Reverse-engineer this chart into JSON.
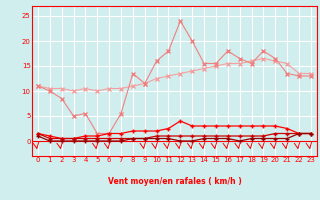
{
  "x": [
    0,
    1,
    2,
    3,
    4,
    5,
    6,
    7,
    8,
    9,
    10,
    11,
    12,
    13,
    14,
    15,
    16,
    17,
    18,
    19,
    20,
    21,
    22,
    23
  ],
  "line1": [
    11.0,
    10.5,
    10.5,
    10.0,
    10.5,
    10.0,
    10.5,
    10.5,
    11.0,
    11.5,
    12.5,
    13.0,
    13.5,
    14.0,
    14.5,
    15.0,
    15.5,
    15.5,
    16.0,
    16.5,
    16.0,
    15.5,
    13.5,
    13.5
  ],
  "line2": [
    11.0,
    10.0,
    8.5,
    5.0,
    5.5,
    1.5,
    1.5,
    5.5,
    13.5,
    11.5,
    16.0,
    18.0,
    24.0,
    20.0,
    15.5,
    15.5,
    18.0,
    16.5,
    15.5,
    18.0,
    16.5,
    13.5,
    13.0,
    13.0
  ],
  "line3": [
    1.5,
    1.0,
    0.5,
    0.5,
    1.0,
    1.0,
    1.5,
    1.5,
    2.0,
    2.0,
    2.0,
    2.5,
    4.0,
    3.0,
    3.0,
    3.0,
    3.0,
    3.0,
    3.0,
    3.0,
    3.0,
    2.5,
    1.5,
    1.5
  ],
  "line4": [
    1.5,
    0.5,
    0.5,
    0.5,
    0.5,
    0.5,
    0.5,
    0.5,
    0.5,
    0.5,
    1.0,
    1.0,
    1.0,
    1.0,
    1.0,
    1.0,
    1.0,
    1.0,
    1.0,
    1.0,
    1.5,
    1.5,
    1.5,
    1.5
  ],
  "line5": [
    1.0,
    0.0,
    0.0,
    0.0,
    0.0,
    0.0,
    0.0,
    0.0,
    0.5,
    0.5,
    0.5,
    0.5,
    0.0,
    0.0,
    0.5,
    0.5,
    0.5,
    0.0,
    0.5,
    0.5,
    0.5,
    0.5,
    1.5,
    1.5
  ],
  "color_light_pink": "#F4A0A0",
  "color_salmon": "#F08080",
  "color_red": "#FF0000",
  "color_dark_red": "#CC0000",
  "color_very_dark_red": "#990000",
  "bg_color": "#D0EEEE",
  "grid_color": "#FFFFFF",
  "xlabel": "Vent moyen/en rafales ( km/h )",
  "ylim": [
    -3,
    27
  ],
  "xlim": [
    -0.5,
    23.5
  ],
  "yticks": [
    0,
    5,
    10,
    15,
    20,
    25
  ],
  "xticks": [
    0,
    1,
    2,
    3,
    4,
    5,
    6,
    7,
    8,
    9,
    10,
    11,
    12,
    13,
    14,
    15,
    16,
    17,
    18,
    19,
    20,
    21,
    22,
    23
  ],
  "wind_arrows_x": [
    0,
    2,
    5,
    6,
    9,
    10,
    11,
    12,
    13,
    14,
    15,
    16,
    17,
    18,
    19,
    20,
    21,
    22,
    23
  ]
}
